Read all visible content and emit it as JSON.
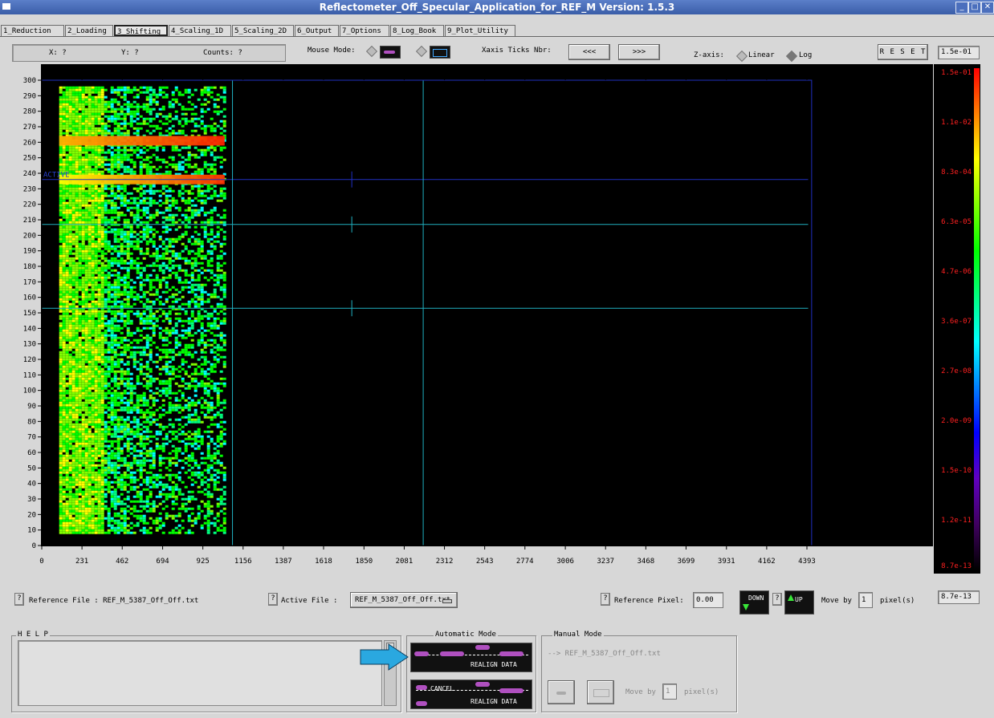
{
  "window": {
    "title": "Reflectometer_Off_Specular_Application_for_REF_M Version: 1.5.3",
    "controls": [
      "_",
      "□",
      "✕"
    ]
  },
  "tabs": [
    {
      "label": "1_Reduction",
      "selected": false
    },
    {
      "label": "2_Loading",
      "selected": false
    },
    {
      "label": "3_Shifting",
      "selected": true
    },
    {
      "label": "4_Scaling_1D",
      "selected": false
    },
    {
      "label": "5_Scaling_2D",
      "selected": false
    },
    {
      "label": "6_Output",
      "selected": false
    },
    {
      "label": "7_Options",
      "selected": false
    },
    {
      "label": "8_Log_Book",
      "selected": false
    },
    {
      "label": "9_Plot_Utility",
      "selected": false
    }
  ],
  "toolbar": {
    "x_label": "X: ?",
    "y_label": "Y: ?",
    "counts_label": "Counts: ?",
    "mouse_mode_label": "Mouse Mode:",
    "xaxis_ticks_label": "Xaxis Ticks Nbr:",
    "ticks_less": "<<<",
    "ticks_more": ">>>",
    "zaxis_label": "Z-axis:",
    "zaxis_linear": "Linear",
    "zaxis_log": "Log",
    "reset_label": "R E S E T",
    "zmax_value": "1.5e-01",
    "zmin_value": "8.7e-13"
  },
  "chart_data": {
    "type": "heatmap",
    "x_ticks": [
      "0",
      "231",
      "462",
      "694",
      "925",
      "1156",
      "1387",
      "1618",
      "1850",
      "2081",
      "2312",
      "2543",
      "2774",
      "3006",
      "3237",
      "3468",
      "3699",
      "3931",
      "4162",
      "4393"
    ],
    "y_ticks": [
      "0",
      "10",
      "20",
      "30",
      "40",
      "50",
      "60",
      "70",
      "80",
      "90",
      "100",
      "110",
      "120",
      "130",
      "140",
      "150",
      "160",
      "170",
      "180",
      "190",
      "200",
      "210",
      "220",
      "230",
      "240",
      "250",
      "260",
      "270",
      "280",
      "290",
      "300"
    ],
    "xlim": [
      0,
      4393
    ],
    "ylim": [
      0,
      300
    ],
    "active_label": "ACTIVE",
    "horizontal_lines": [
      {
        "y": 236,
        "color": "#2030c0"
      },
      {
        "y": 207,
        "color": "#20b0c0"
      },
      {
        "y": 153,
        "color": "#20b0c0"
      }
    ],
    "colorbar_labels": [
      "1.5e-01",
      "1.1e-02",
      "8.3e-04",
      "6.3e-05",
      "4.7e-06",
      "3.6e-07",
      "2.7e-08",
      "2.0e-09",
      "1.5e-10",
      "1.2e-11",
      "8.7e-13"
    ],
    "colormap": [
      "#ff0000",
      "#ff8000",
      "#ffff00",
      "#80ff00",
      "#00ff00",
      "#00ff80",
      "#00ffff",
      "#0080ff",
      "#0000ff",
      "#6000c0",
      "#400060",
      "#000000"
    ]
  },
  "bottom": {
    "reference_file_label": "Reference File : REF_M_5387_Off_Off.txt",
    "active_file_label": "Active File :",
    "active_file_value": "REF_M_5387_Off_Off.txt",
    "reference_pixel_label": "Reference Pixel:",
    "reference_pixel_value": "0.00",
    "down_label": "DOWN",
    "up_label": "UP",
    "move_by_label": "Move by",
    "move_by_value": "1",
    "pixels_label": "pixel(s)",
    "help_q": "?"
  },
  "help": {
    "title": "H E L P",
    "text": ""
  },
  "automatic_mode": {
    "title": "Automatic Mode",
    "realign_label": "REALIGN DATA",
    "cancel_label": "CANCEL",
    "cancel_realign_label": "REALIGN DATA"
  },
  "manual_mode": {
    "title": "Manual Mode",
    "file_text": "--> REF_M_5387_Off_Off.txt",
    "move_by_label": "Move by",
    "move_by_value": "1",
    "pixels_label": "pixel(s)"
  },
  "colors": {
    "arrow": "#2aa8e0",
    "title_bar": "#4a6db5"
  }
}
